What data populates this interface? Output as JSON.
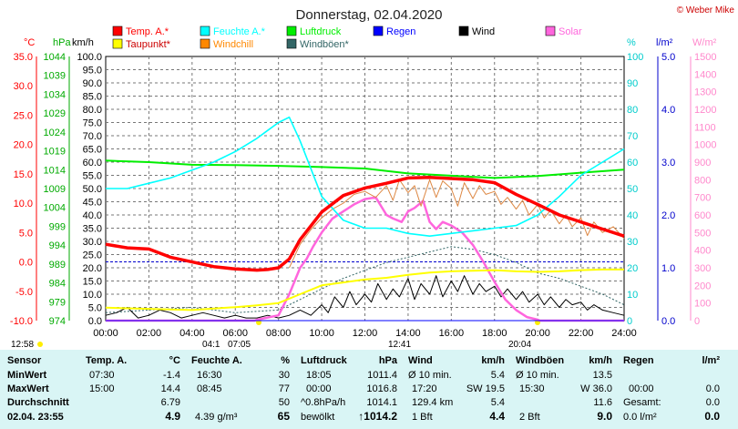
{
  "chart_data": {
    "type": "line",
    "title": "Donnerstag, 02.04.2020",
    "brand": "© Weber Mike",
    "x_ticks": [
      "00:00",
      "02:00",
      "04:00",
      "06:00",
      "08:00",
      "10:00",
      "12:00",
      "14:00",
      "16:00",
      "18:00",
      "20:00",
      "22:00",
      "24:00"
    ],
    "axes": {
      "temp": {
        "unit": "°C",
        "ticks": [
          "35.0",
          "30.0",
          "25.0",
          "20.0",
          "15.0",
          "10.0",
          "5.0",
          "0.0",
          "-5.0",
          "-10.0"
        ],
        "color": "#ff0000",
        "range": [
          -10,
          35
        ]
      },
      "pressure": {
        "unit": "hPa",
        "ticks": [
          "1044",
          "1039",
          "1034",
          "1029",
          "1024",
          "1019",
          "1014",
          "1009",
          "1004",
          "999",
          "994",
          "989",
          "984",
          "979",
          "974"
        ],
        "color": "#00aa00",
        "range": [
          974,
          1044
        ]
      },
      "wind": {
        "unit": "km/h",
        "ticks": [
          "100.0",
          "95.0",
          "90.0",
          "85.0",
          "80.0",
          "75.0",
          "70.0",
          "65.0",
          "60.0",
          "55.0",
          "50.0",
          "45.0",
          "40.0",
          "35.0",
          "30.0",
          "25.0",
          "20.0",
          "15.0",
          "10.0",
          "5.0",
          "0.0"
        ],
        "color": "#000000",
        "range": [
          0,
          100
        ]
      },
      "humidity": {
        "unit": "%",
        "ticks": [
          "100",
          "90",
          "80",
          "70",
          "60",
          "50",
          "40",
          "30",
          "20",
          "10",
          "0"
        ],
        "color": "#00cccc",
        "range": [
          0,
          100
        ]
      },
      "rain": {
        "unit": "l/m²",
        "ticks": [
          "5.0",
          "4.0",
          "3.0",
          "2.0",
          "1.0",
          "0.0"
        ],
        "color": "#0000cc",
        "range": [
          0,
          5
        ]
      },
      "solar": {
        "unit": "W/m²",
        "ticks": [
          "1500",
          "1400",
          "1300",
          "1200",
          "1100",
          "1000",
          "900",
          "800",
          "700",
          "600",
          "500",
          "400",
          "300",
          "200",
          "100",
          "0"
        ],
        "color": "#ff88cc",
        "range": [
          0,
          1500
        ]
      }
    },
    "legend": [
      {
        "label": "Temp. A.*",
        "color": "#ff0000"
      },
      {
        "label": "Feuchte A.*",
        "color": "#00ffff"
      },
      {
        "label": "Luftdruck",
        "color": "#00ee00"
      },
      {
        "label": "Regen",
        "color": "#0000ff"
      },
      {
        "label": "Wind",
        "color": "#000000"
      },
      {
        "label": "Solar",
        "color": "#ff66dd"
      },
      {
        "label": "Taupunkt*",
        "color": "#ffff00"
      },
      {
        "label": "Windchill",
        "color": "#ff8800"
      },
      {
        "label": "Windböen*",
        "color": "#336666"
      }
    ],
    "sun_labels": [
      {
        "text": "12:58",
        "color": "#000000"
      },
      {
        "text": "04:1",
        "color": "#000000"
      },
      {
        "text": "07:05",
        "color": "#000000"
      },
      {
        "text": "12:41",
        "color": "#000000"
      },
      {
        "text": "20:04",
        "color": "#000000"
      }
    ],
    "series": [
      {
        "name": "Temp. A.*",
        "axis": "temp",
        "color": "#ff0000",
        "x": [
          0,
          1,
          2,
          3,
          4,
          5,
          6,
          7,
          7.5,
          8,
          8.5,
          9,
          10,
          11,
          12,
          13,
          14,
          15,
          16,
          17,
          18,
          19,
          20,
          21,
          22,
          23,
          24
        ],
        "y": [
          3,
          2.4,
          2.2,
          0.8,
          0,
          -0.8,
          -1.2,
          -1.4,
          -1.3,
          -1,
          0.5,
          3.8,
          8.5,
          11.3,
          12.6,
          13.4,
          14.3,
          14.4,
          14.2,
          14,
          13.5,
          11.5,
          9.8,
          8,
          6.8,
          5.6,
          4.4
        ]
      },
      {
        "name": "Feuchte A.*",
        "axis": "humidity",
        "color": "#00ffff",
        "x": [
          0,
          1,
          2,
          3,
          4,
          5,
          6,
          7,
          7.5,
          8,
          8.5,
          9,
          10,
          11,
          12,
          13,
          14,
          15,
          16,
          17,
          18,
          19,
          20,
          21,
          22,
          23,
          24
        ],
        "y": [
          50,
          50,
          52,
          54,
          57,
          60,
          64,
          69,
          72,
          75,
          77,
          68,
          47,
          38,
          35,
          35,
          33,
          32,
          33,
          34,
          35,
          36,
          40,
          47,
          55,
          60,
          65
        ]
      },
      {
        "name": "Luftdruck",
        "axis": "pressure",
        "color": "#00ee00",
        "x": [
          0,
          2,
          4,
          6,
          8,
          10,
          12,
          14,
          16,
          18,
          20,
          22,
          24
        ],
        "y": [
          1016.4,
          1016.0,
          1015.3,
          1015.2,
          1015.0,
          1014.7,
          1014.3,
          1013.0,
          1012.4,
          1011.8,
          1012.3,
          1013.2,
          1014.0
        ]
      },
      {
        "name": "Taupunkt*",
        "axis": "temp",
        "color": "#ffff00",
        "x": [
          0,
          2,
          4,
          6,
          7,
          8,
          9,
          10,
          11,
          12,
          13,
          14,
          15,
          16,
          17,
          18,
          19,
          20,
          21,
          22,
          23,
          24
        ],
        "y": [
          -7.8,
          -8,
          -8.2,
          -7.7,
          -7.4,
          -7,
          -5.5,
          -4,
          -3.5,
          -3,
          -2.7,
          -2.2,
          -1.8,
          -1.6,
          -1.5,
          -1.4,
          -1.6,
          -1.7,
          -1.6,
          -1.4,
          -1.3,
          -1.3
        ]
      },
      {
        "name": "Windchill",
        "axis": "temp",
        "color": "#dd8844",
        "x": [
          8.5,
          9,
          9.5,
          10,
          10.5,
          11,
          11.5,
          12,
          12.5,
          13,
          13.3,
          13.6,
          14,
          14.3,
          14.6,
          15,
          15.3,
          15.6,
          16,
          16.3,
          16.6,
          17,
          17.3,
          17.6,
          18,
          18.3,
          18.6,
          19,
          19.3,
          19.6,
          20,
          20.3,
          20.6,
          21,
          21.3,
          21.6,
          22,
          22.3,
          22.6,
          23,
          23.5,
          24
        ],
        "y": [
          -1,
          3,
          5.5,
          7.5,
          9,
          10,
          11.5,
          12,
          11,
          13,
          10.5,
          14,
          11.8,
          13,
          9.5,
          14,
          11,
          13.8,
          12.5,
          9.5,
          13.5,
          10.8,
          13,
          11.5,
          12,
          9.8,
          11,
          9,
          10.5,
          8,
          9.8,
          7.5,
          8.8,
          6.5,
          8,
          6,
          7.5,
          4.5,
          6.8,
          5,
          6,
          4
        ]
      },
      {
        "name": "Solar",
        "axis": "solar",
        "color": "#ff66dd",
        "x": [
          0,
          6.9,
          7,
          8,
          8.5,
          9,
          9.3,
          9.6,
          10,
          10.5,
          11,
          11.5,
          12,
          12.5,
          13,
          13.3,
          13.7,
          14,
          14.3,
          14.7,
          15,
          15.3,
          15.6,
          16,
          16.5,
          17,
          17.5,
          18,
          18.5,
          19,
          19.5,
          20,
          20.1,
          24
        ],
        "y": [
          0,
          0,
          5,
          30,
          150,
          300,
          350,
          420,
          500,
          580,
          620,
          660,
          690,
          700,
          600,
          580,
          560,
          620,
          640,
          680,
          560,
          520,
          560,
          540,
          500,
          430,
          330,
          220,
          120,
          60,
          20,
          5,
          0,
          0
        ]
      },
      {
        "name": "Wind",
        "axis": "wind",
        "color": "#000000",
        "x": [
          0,
          0.5,
          1,
          1.5,
          2,
          2.5,
          3,
          3.5,
          4,
          4.5,
          5,
          5.5,
          6,
          6.5,
          7,
          7.5,
          8,
          8.5,
          9,
          9.5,
          10,
          10.3,
          10.6,
          11,
          11.3,
          11.6,
          12,
          12.3,
          12.6,
          13,
          13.3,
          13.6,
          14,
          14.3,
          14.6,
          15,
          15.3,
          15.6,
          16,
          16.3,
          16.6,
          17,
          17.3,
          17.6,
          18,
          18.3,
          18.6,
          19,
          19.3,
          19.6,
          20,
          20.3,
          20.6,
          21,
          21.3,
          21.6,
          22,
          22.3,
          22.6,
          23,
          23.5,
          24
        ],
        "y": [
          2,
          3,
          5,
          1,
          2,
          4,
          3,
          1,
          2,
          3,
          2,
          1,
          2,
          1,
          1,
          2,
          1,
          2,
          4,
          2,
          6,
          3,
          9,
          5,
          11,
          6,
          10,
          7,
          14,
          8,
          12,
          9,
          16,
          8,
          14,
          10,
          17,
          9,
          15,
          11,
          17,
          10,
          14,
          11,
          13,
          9,
          12,
          8,
          11,
          7,
          10,
          6,
          9,
          5,
          8,
          6,
          7,
          4,
          6,
          4,
          3,
          2
        ]
      },
      {
        "name": "Windböen*",
        "axis": "wind",
        "color": "#336666",
        "x": [
          0,
          2,
          4,
          6,
          8,
          9,
          10,
          11,
          12,
          13,
          14,
          15,
          16,
          17,
          18,
          19,
          20,
          21,
          22,
          23,
          24
        ],
        "y": [
          3,
          4,
          5,
          3,
          4,
          8,
          12,
          16,
          19,
          22,
          24,
          26,
          28,
          27,
          25,
          22,
          18,
          16,
          13,
          10,
          6
        ]
      },
      {
        "name": "Regen",
        "axis": "rain",
        "color": "#0000ff",
        "x": [
          0,
          24
        ],
        "y": [
          0,
          0
        ]
      }
    ]
  },
  "stats": {
    "cols": [
      {
        "header": "Sensor",
        "rows": [
          "MinWert",
          "MaxWert",
          "Durchschnitt",
          "02.04.  23:55"
        ]
      },
      {
        "header": "Temp. A.",
        "unit": "°C",
        "rows": [
          [
            "07:30",
            "-1.4"
          ],
          [
            "15:00",
            "14.4"
          ],
          [
            "",
            "6.79"
          ],
          [
            "",
            "4.9"
          ]
        ]
      },
      {
        "header": "Feuchte A.",
        "unit": "%",
        "rows": [
          [
            "16:30",
            "30"
          ],
          [
            "08:45",
            "77"
          ],
          [
            "",
            "50"
          ],
          [
            "4.39 g/m³",
            "65"
          ]
        ]
      },
      {
        "header": "Luftdruck",
        "unit": "hPa",
        "rows": [
          [
            "18:05",
            "1011.4"
          ],
          [
            "00:00",
            "1016.8"
          ],
          [
            "^0.8hPa/h",
            "1014.1"
          ],
          [
            "bewölkt",
            "↑1014.2"
          ]
        ]
      },
      {
        "header": "Wind",
        "unit": "km/h",
        "rows": [
          [
            "Ø 10 min.",
            "5.4"
          ],
          [
            "17:20",
            "SW 19.5"
          ],
          [
            "129.4 km",
            "5.4"
          ],
          [
            "1 Bft",
            "4.4"
          ]
        ]
      },
      {
        "header": "Windböen",
        "unit": "km/h",
        "rows": [
          [
            "Ø 10 min.",
            "13.5"
          ],
          [
            "15:30",
            "W 36.0"
          ],
          [
            "",
            "11.6"
          ],
          [
            "2 Bft",
            "9.0"
          ]
        ]
      },
      {
        "header": "Regen",
        "unit": "l/m²",
        "rows": [
          [
            "",
            ""
          ],
          [
            "00:00",
            "0.0"
          ],
          [
            "Gesamt:",
            "0.0"
          ],
          [
            "0.0 l/m²",
            "0.0"
          ]
        ]
      }
    ]
  }
}
